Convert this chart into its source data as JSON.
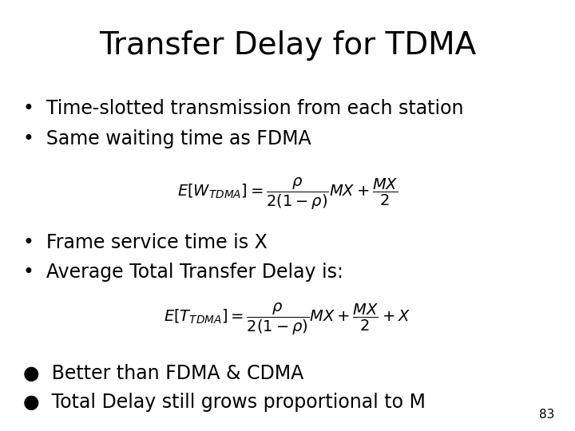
{
  "title": "Transfer Delay for TDMA",
  "title_fontsize": 28,
  "background_color": "#ffffff",
  "text_color": "#000000",
  "bullet1": "Time-slotted transmission from each station",
  "bullet2": "Same waiting time as FDMA",
  "formula1": "$E[W_{TDMA}] = \\dfrac{\\rho}{2(1-\\rho)} MX + \\dfrac{MX}{2}$",
  "bullet3": "Frame service time is X",
  "bullet4": "Average Total Transfer Delay is:",
  "formula2": "$E[T_{TDMA}] = \\dfrac{\\rho}{2(1-\\rho)} MX + \\dfrac{MX}{2} + X$",
  "bullet5": "Better than FDMA & CDMA",
  "bullet6": "Total Delay still grows proportional to M",
  "page_number": "83",
  "bullet_fontsize": 17,
  "formula_fontsize": 14,
  "page_fontsize": 11,
  "fig_width": 7.2,
  "fig_height": 5.4,
  "dpi": 100
}
